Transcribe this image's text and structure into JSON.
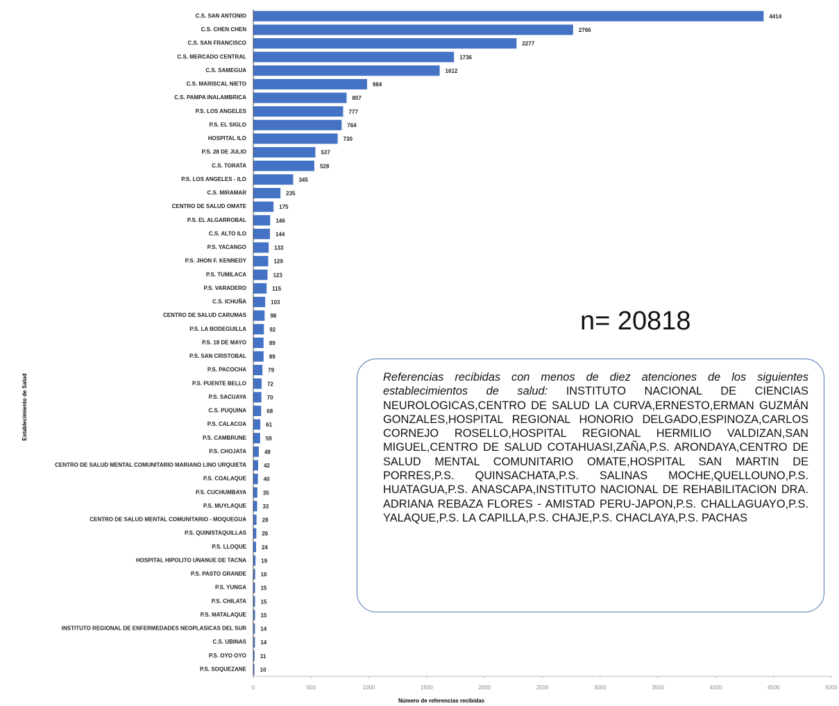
{
  "chart_data": {
    "type": "bar",
    "orientation": "horizontal",
    "color": "#4472c4",
    "categories": [
      "C.S. SAN ANTONIO",
      "C.S. CHEN CHEN",
      "C.S. SAN FRANCISCO",
      "C.S. MERCADO CENTRAL",
      "C.S. SAMEGUA",
      "C.S. MARISCAL NIETO",
      "C.S. PAMPA INALAMBRICA",
      "P.S. LOS ANGELES",
      "P.S. EL SIGLO",
      "HOSPITAL ILO",
      "P.S. 28 DE JULIO",
      "C.S. TORATA",
      "P.S. LOS ANGELES - ILO",
      "C.S. MIRAMAR",
      "CENTRO DE SALUD OMATE",
      "P.S. EL ALGARROBAL",
      "C.S. ALTO ILO",
      "P.S. YACANGO",
      "P.S. JHON F. KENNEDY",
      "P.S. TUMILACA",
      "P.S. VARADERO",
      "C.S. ICHUÑA",
      "CENTRO DE SALUD CARUMAS",
      "P.S. LA BODEGUILLA",
      "P.S. 18 DE MAYO",
      "P.S. SAN CRISTOBAL",
      "P.S. PACOCHA",
      "P.S. PUENTE BELLO",
      "P.S. SACUAYA",
      "C.S. PUQUINA",
      "P.S. CALACOA",
      "P.S. CAMBRUNE",
      "P.S. CHOJATA",
      "CENTRO DE SALUD MENTAL COMUNITARIO MARIANO LINO URQUIETA",
      "P.S. COALAQUE",
      "P.S. CUCHUMBAYA",
      "P.S. MUYLAQUE",
      "CENTRO DE SALUD MENTAL COMUNITARIO - MOQUEGUA",
      "P.S. QUINISTAQUILLAS",
      "P.S. LLOQUE",
      "HOSPITAL HIPOLITO UNANUE DE TACNA",
      "P.S. PASTO GRANDE",
      "P.S. YUNGA",
      "P.S. CHILATA",
      "P.S. MATALAQUE",
      "INSTITUTO REGIONAL DE ENFERMEDADES NEOPLASICAS DEL SUR",
      "C.S. UBINAS",
      "P.S. OYO OYO",
      "P.S. SOQUEZANE"
    ],
    "values": [
      4414,
      2766,
      2277,
      1736,
      1612,
      984,
      807,
      777,
      764,
      730,
      537,
      528,
      345,
      235,
      175,
      146,
      144,
      133,
      129,
      123,
      115,
      103,
      98,
      92,
      89,
      89,
      79,
      72,
      70,
      68,
      61,
      59,
      48,
      42,
      40,
      35,
      33,
      28,
      26,
      24,
      19,
      16,
      15,
      15,
      15,
      14,
      14,
      11,
      10
    ],
    "xlim": [
      0,
      5000
    ],
    "xticks": [
      0,
      500,
      1000,
      1500,
      2000,
      2500,
      3000,
      3500,
      4000,
      4500,
      5000
    ],
    "x_label": "Número de referencias recibidas",
    "y_label": "Establecimiento de Salud",
    "annotation": "n= 20818",
    "note": {
      "intro": "Referencias recibidas con menos de diez atenciones de los siguientes establecimientos de salud:",
      "body": "INSTITUTO NACIONAL DE CIENCIAS NEUROLOGICAS,CENTRO DE SALUD LA CURVA,ERNESTO,ERMAN GUZMÁN GONZALES,HOSPITAL REGIONAL HONORIO DELGADO,ESPINOZA,CARLOS CORNEJO ROSELLO,HOSPITAL REGIONAL HERMILIO VALDIZAN,SAN MIGUEL,CENTRO DE SALUD COTAHUASI,ZAÑA,P.S. ARONDAYA,CENTRO DE SALUD MENTAL COMUNITARIO OMATE,HOSPITAL SAN MARTIN DE PORRES,P.S. QUINSACHATA,P.S. SALINAS MOCHE,QUELLOUNO,P.S. HUATAGUA,P.S. ANASCAPA,INSTITUTO NACIONAL DE REHABILITACION DRA. ADRIANA REBAZA FLORES - AMISTAD PERU-JAPON,P.S. CHALLAGUAYO,P.S. YALAQUE,P.S. LA CAPILLA,P.S. CHAJE,P.S. CHACLAYA,P.S. PACHAS"
    }
  }
}
